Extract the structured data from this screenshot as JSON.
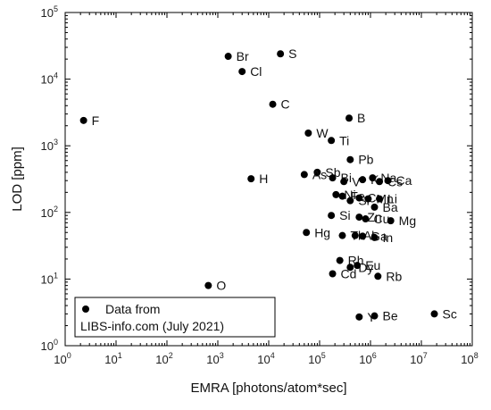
{
  "chart_data": {
    "type": "scatter",
    "xlabel": "EMRA [photons/atom*sec]",
    "ylabel": "LOD [ppm]",
    "x_scale": "log",
    "y_scale": "log",
    "xlim": [
      1,
      100000000
    ],
    "ylim": [
      1,
      100000
    ],
    "x_ticks": [
      {
        "value": 1,
        "base": "10",
        "exp": "0"
      },
      {
        "value": 10,
        "base": "10",
        "exp": "1"
      },
      {
        "value": 100,
        "base": "10",
        "exp": "2"
      },
      {
        "value": 1000,
        "base": "10",
        "exp": "3"
      },
      {
        "value": 10000,
        "base": "10",
        "exp": "4"
      },
      {
        "value": 100000,
        "base": "10",
        "exp": "5"
      },
      {
        "value": 1000000,
        "base": "10",
        "exp": "6"
      },
      {
        "value": 10000000,
        "base": "10",
        "exp": "7"
      },
      {
        "value": 100000000,
        "base": "10",
        "exp": "8"
      }
    ],
    "y_ticks": [
      {
        "value": 1,
        "base": "10",
        "exp": "0"
      },
      {
        "value": 10,
        "base": "10",
        "exp": "1"
      },
      {
        "value": 100,
        "base": "10",
        "exp": "2"
      },
      {
        "value": 1000,
        "base": "10",
        "exp": "3"
      },
      {
        "value": 10000,
        "base": "10",
        "exp": "4"
      },
      {
        "value": 100000,
        "base": "10",
        "exp": "5"
      }
    ],
    "legend": {
      "position": "bottom-left",
      "entries": [
        "Data from",
        "LIBS-info.com (July 2021)"
      ]
    },
    "marker_color": "#000000",
    "points": [
      {
        "label": "F",
        "x": 2.3,
        "y": 2400
      },
      {
        "label": "O",
        "x": 650,
        "y": 8
      },
      {
        "label": "Br",
        "x": 1600,
        "y": 22000
      },
      {
        "label": "Cl",
        "x": 3000,
        "y": 13000
      },
      {
        "label": "S",
        "x": 17000,
        "y": 24000
      },
      {
        "label": "C",
        "x": 12000,
        "y": 4200
      },
      {
        "label": "H",
        "x": 4500,
        "y": 320
      },
      {
        "label": "B",
        "x": 380000,
        "y": 2600
      },
      {
        "label": "W",
        "x": 60000,
        "y": 1550
      },
      {
        "label": "Ti",
        "x": 170000,
        "y": 1200
      },
      {
        "label": "Pb",
        "x": 400000,
        "y": 620
      },
      {
        "label": "Sb",
        "x": 90000,
        "y": 400
      },
      {
        "label": "As",
        "x": 50000,
        "y": 370
      },
      {
        "label": "Bi",
        "x": 180000,
        "y": 330
      },
      {
        "label": "V",
        "x": 300000,
        "y": 290
      },
      {
        "label": "K",
        "x": 700000,
        "y": 310
      },
      {
        "label": "Na",
        "x": 1100000,
        "y": 330
      },
      {
        "label": "Cs",
        "x": 1500000,
        "y": 290
      },
      {
        "label": "Ca",
        "x": 2200000,
        "y": 300
      },
      {
        "label": "Ni",
        "x": 210000,
        "y": 185
      },
      {
        "label": "Fe",
        "x": 280000,
        "y": 175
      },
      {
        "label": "Sr",
        "x": 400000,
        "y": 150
      },
      {
        "label": "Cr",
        "x": 600000,
        "y": 165
      },
      {
        "label": "Mn",
        "x": 900000,
        "y": 160
      },
      {
        "label": "Li",
        "x": 1500000,
        "y": 160
      },
      {
        "label": "Ba",
        "x": 1200000,
        "y": 120
      },
      {
        "label": "Si",
        "x": 170000,
        "y": 90
      },
      {
        "label": "Zn",
        "x": 600000,
        "y": 85
      },
      {
        "label": "Cu",
        "x": 800000,
        "y": 80
      },
      {
        "label": "Mg",
        "x": 2500000,
        "y": 75
      },
      {
        "label": "Hg",
        "x": 55000,
        "y": 50
      },
      {
        "label": "Tl",
        "x": 280000,
        "y": 45
      },
      {
        "label": "Al",
        "x": 500000,
        "y": 45
      },
      {
        "label": "Ga",
        "x": 700000,
        "y": 44
      },
      {
        "label": "In",
        "x": 1200000,
        "y": 42
      },
      {
        "label": "Cd",
        "x": 180000,
        "y": 12
      },
      {
        "label": "Rh",
        "x": 250000,
        "y": 19
      },
      {
        "label": "Dy",
        "x": 400000,
        "y": 15
      },
      {
        "label": "Eu",
        "x": 550000,
        "y": 16
      },
      {
        "label": "Rb",
        "x": 1400000,
        "y": 11
      },
      {
        "label": "Y",
        "x": 600000,
        "y": 2.7
      },
      {
        "label": "Be",
        "x": 1200000,
        "y": 2.8
      },
      {
        "label": "Sc",
        "x": 18000000,
        "y": 3
      }
    ]
  }
}
